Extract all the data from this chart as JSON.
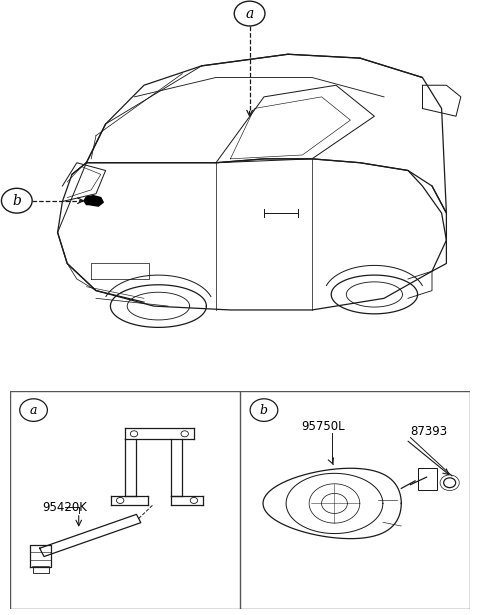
{
  "bg_color": "#ffffff",
  "line_color": "#1a1a1a",
  "fig_width": 4.8,
  "fig_height": 6.15,
  "part_a_label": "a",
  "part_b_label": "b",
  "part_a_part": "95420K",
  "part_b_part1": "95750L",
  "part_b_part2": "87393"
}
